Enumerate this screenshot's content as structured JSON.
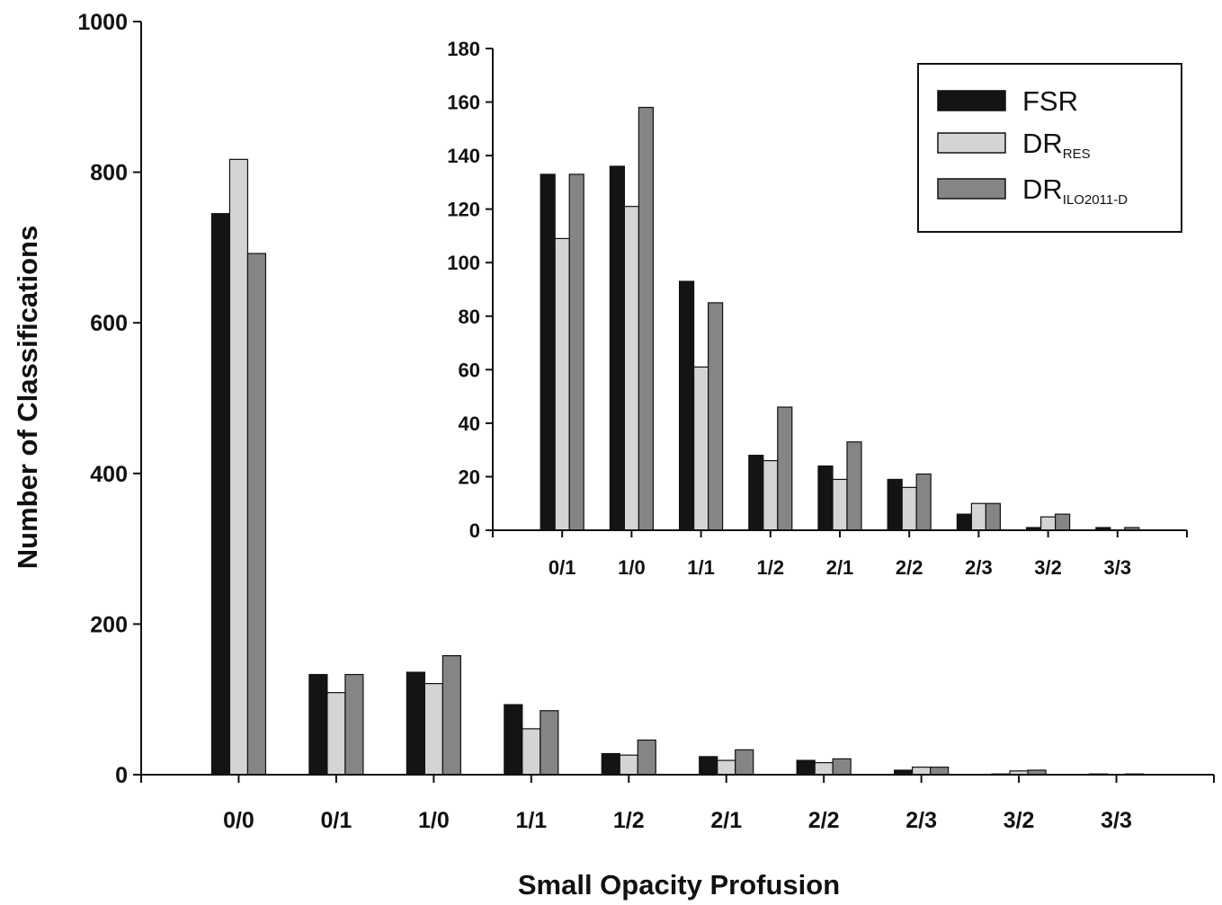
{
  "chart_data": [
    {
      "type": "bar",
      "title": "",
      "xlabel": "Small Opacity Profusion",
      "ylabel": "Number of Classifications",
      "ylim": [
        0,
        1000
      ],
      "yticks": [
        "0",
        "200",
        "400",
        "600",
        "800",
        "1000"
      ],
      "categories": [
        "0/0",
        "0/1",
        "1/0",
        "1/1",
        "1/2",
        "2/1",
        "2/2",
        "2/3",
        "3/2",
        "3/3"
      ],
      "series": [
        {
          "name": "FSR",
          "color": "#141414",
          "values": [
            745,
            133,
            136,
            93,
            28,
            24,
            19,
            6,
            1,
            1
          ]
        },
        {
          "name": "DR_RES",
          "color": "#d4d4d4",
          "values": [
            817,
            109,
            121,
            61,
            26,
            19,
            16,
            10,
            5,
            0
          ]
        },
        {
          "name": "DR_ILO2011-D",
          "color": "#858585",
          "values": [
            692,
            133,
            158,
            85,
            46,
            33,
            21,
            10,
            6,
            1
          ]
        }
      ],
      "grid": false
    },
    {
      "type": "bar",
      "title": "",
      "xlabel": "",
      "ylabel": "",
      "ylim": [
        0,
        180
      ],
      "yticks": [
        "0",
        "20",
        "40",
        "60",
        "80",
        "100",
        "120",
        "140",
        "160",
        "180"
      ],
      "categories": [
        "0/1",
        "1/0",
        "1/1",
        "1/2",
        "2/1",
        "2/2",
        "2/3",
        "3/2",
        "3/3"
      ],
      "series": [
        {
          "name": "FSR",
          "color": "#141414",
          "values": [
            133,
            136,
            93,
            28,
            24,
            19,
            6,
            1,
            1
          ]
        },
        {
          "name": "DR_RES",
          "color": "#d4d4d4",
          "values": [
            109,
            121,
            61,
            26,
            19,
            16,
            10,
            5,
            0
          ]
        },
        {
          "name": "DR_ILO2011-D",
          "color": "#858585",
          "values": [
            133,
            158,
            85,
            46,
            33,
            21,
            10,
            6,
            1
          ]
        }
      ],
      "grid": false,
      "legend_position": "top-right"
    }
  ],
  "legend": {
    "items": [
      {
        "main": "FSR",
        "sub": "",
        "color": "#141414"
      },
      {
        "main": "DR",
        "sub": "RES",
        "color": "#d4d4d4"
      },
      {
        "main": "DR",
        "sub": "ILO2011-D",
        "color": "#858585"
      }
    ]
  }
}
